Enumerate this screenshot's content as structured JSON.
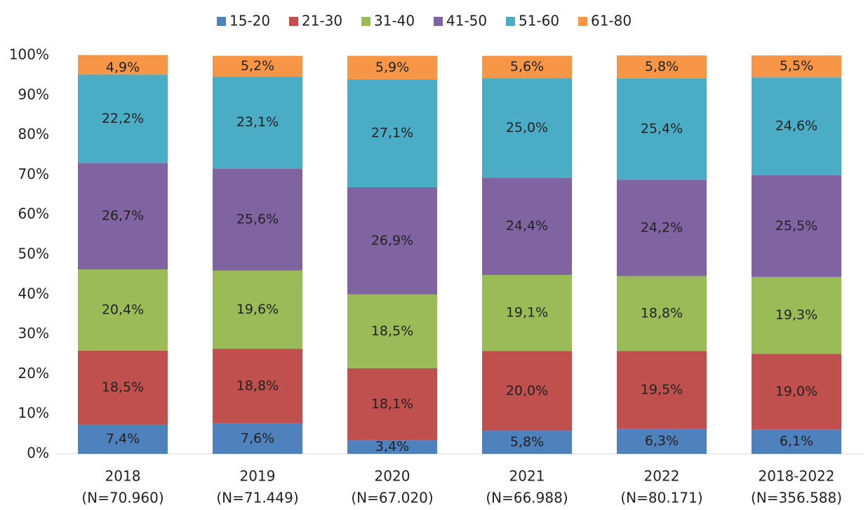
{
  "chart_data": {
    "type": "bar",
    "stacked": true,
    "categories": [
      [
        "2018",
        "(N=70.960)"
      ],
      [
        "2019",
        "(N=71.449)"
      ],
      [
        "2020",
        "(N=67.020)"
      ],
      [
        "2021",
        "(N=66.988)"
      ],
      [
        "2022",
        "(N=80.171)"
      ],
      [
        "2018-2022",
        "(N=356.588)"
      ]
    ],
    "series": [
      {
        "name": "15-20",
        "color": "#4f81bd",
        "values": [
          7.4,
          7.6,
          3.4,
          5.8,
          6.3,
          6.1
        ],
        "value_labels": [
          "7,4%",
          "7,6%",
          "3,4%",
          "5,8%",
          "6,3%",
          "6,1%"
        ]
      },
      {
        "name": "21-30",
        "color": "#c0504d",
        "values": [
          18.5,
          18.8,
          18.1,
          20.0,
          19.5,
          19.0
        ],
        "value_labels": [
          "18,5%",
          "18,8%",
          "18,1%",
          "20,0%",
          "19,5%",
          "19,0%"
        ]
      },
      {
        "name": "31-40",
        "color": "#9bbb59",
        "values": [
          20.4,
          19.6,
          18.5,
          19.1,
          18.8,
          19.3
        ],
        "value_labels": [
          "20,4%",
          "19,6%",
          "18,5%",
          "19,1%",
          "18,8%",
          "19,3%"
        ]
      },
      {
        "name": "41-50",
        "color": "#8064a2",
        "values": [
          26.7,
          25.6,
          26.9,
          24.4,
          24.2,
          25.5
        ],
        "value_labels": [
          "26,7%",
          "25,6%",
          "26,9%",
          "24,4%",
          "24,2%",
          "25,5%"
        ]
      },
      {
        "name": "51-60",
        "color": "#4bacc6",
        "values": [
          22.2,
          23.1,
          27.1,
          25.0,
          25.4,
          24.6
        ],
        "value_labels": [
          "22,2%",
          "23,1%",
          "27,1%",
          "25,0%",
          "25,4%",
          "24,6%"
        ]
      },
      {
        "name": "61-80",
        "color": "#f79646",
        "values": [
          4.9,
          5.2,
          5.9,
          5.6,
          5.8,
          5.5
        ],
        "value_labels": [
          "4,9%",
          "5,2%",
          "5,9%",
          "5,6%",
          "5,8%",
          "5,5%"
        ]
      }
    ],
    "ylim": [
      0,
      100
    ],
    "yticks": [
      {
        "value": 0,
        "label": "0%"
      },
      {
        "value": 10,
        "label": "10%"
      },
      {
        "value": 20,
        "label": "20%"
      },
      {
        "value": 30,
        "label": "30%"
      },
      {
        "value": 40,
        "label": "40%"
      },
      {
        "value": 50,
        "label": "50%"
      },
      {
        "value": 60,
        "label": "60%"
      },
      {
        "value": 70,
        "label": "70%"
      },
      {
        "value": 80,
        "label": "80%"
      },
      {
        "value": 90,
        "label": "90%"
      },
      {
        "value": 100,
        "label": "100%"
      }
    ],
    "grid": false,
    "legend": "top"
  }
}
